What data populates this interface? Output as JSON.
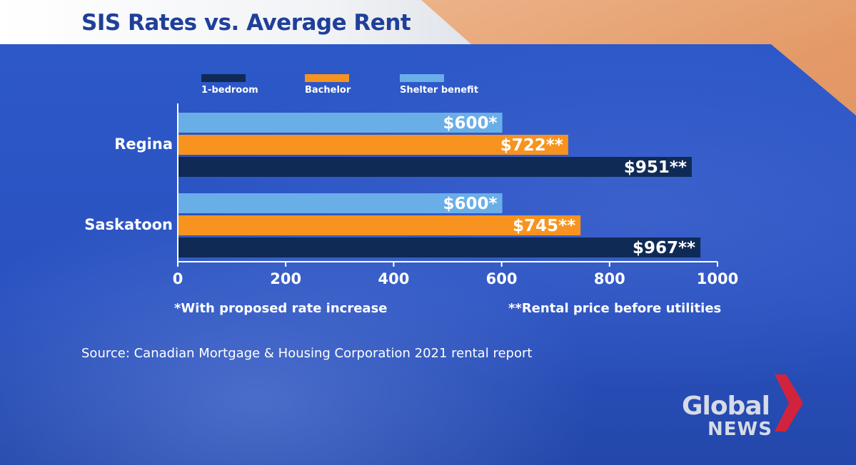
{
  "title": "SIS Rates vs. Average Rent",
  "legend": [
    {
      "label": "1-bedroom",
      "color": "#0f2a55"
    },
    {
      "label": "Bachelor",
      "color": "#f7931e"
    },
    {
      "label": "Shelter benefit",
      "color": "#6aaee8"
    }
  ],
  "chart_data": {
    "type": "bar",
    "orientation": "horizontal",
    "title": "SIS Rates vs. Average Rent",
    "categories": [
      "Regina",
      "Saskatoon"
    ],
    "series": [
      {
        "name": "Shelter benefit",
        "color": "#6aaee8",
        "values": [
          600,
          600
        ],
        "labels": [
          "$600*",
          "$600*"
        ]
      },
      {
        "name": "Bachelor",
        "color": "#f7931e",
        "values": [
          722,
          745
        ],
        "labels": [
          "$722**",
          "$745**"
        ]
      },
      {
        "name": "1-bedroom",
        "color": "#0f2a55",
        "values": [
          951,
          967
        ],
        "labels": [
          "$951**",
          "$967**"
        ]
      }
    ],
    "xlim": [
      0,
      1000
    ],
    "xticks": [
      0,
      200,
      400,
      600,
      800,
      1000
    ],
    "xtick_labels": [
      "0",
      "200",
      "400",
      "600",
      "800",
      "1000"
    ],
    "legend_position": "top",
    "grid": false
  },
  "notes": {
    "left": "*With proposed rate increase",
    "right": "**Rental price before utilities"
  },
  "source": "Source: Canadian Mortgage & Housing Corporation 2021 rental report",
  "logo": {
    "line1": "Global",
    "line2": "NEWS"
  },
  "colors": {
    "panel": "#2d58c8",
    "title": "#1f3f9a",
    "logo_chevron": "#d2233c"
  }
}
